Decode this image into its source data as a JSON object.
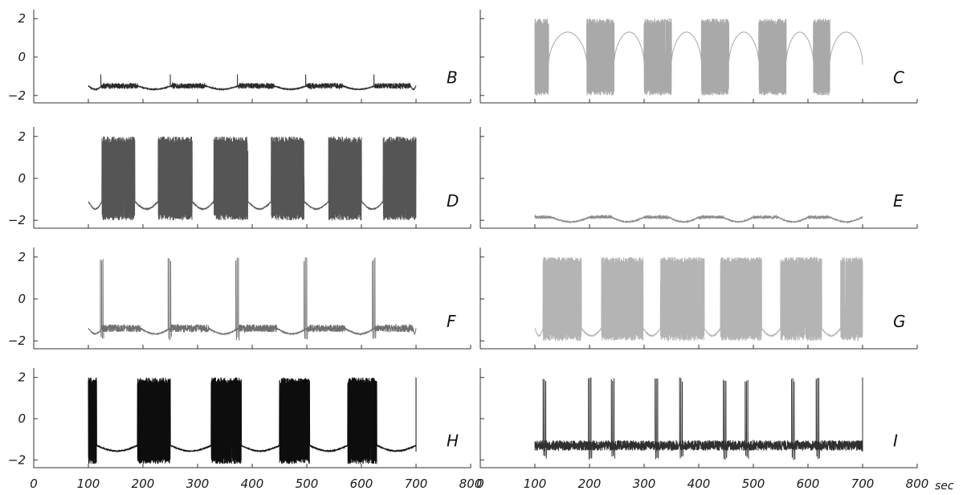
{
  "chart_data": {
    "type": "line",
    "layout": "4x2 grid of time-series panels sharing the x axis",
    "x_unit": "sec",
    "xlim": [
      0,
      800
    ],
    "x_ticks": [
      "0",
      "100",
      "200",
      "300",
      "400",
      "500",
      "600",
      "700",
      "800"
    ],
    "ylim": [
      -2.3,
      2.3
    ],
    "y_ticks": [
      "2",
      "0",
      "−2"
    ],
    "grid": false,
    "legend": "none",
    "panels": [
      {
        "label": "B",
        "color": "#2a2a2a",
        "signal_start": 100,
        "signal_end": 700,
        "pattern": "low-amplitude oscillation with small transient peaks",
        "baseline_level": -1.4,
        "active_level": -1.5,
        "active_amplitude": 0.15,
        "peak_value": -0.9,
        "active_intervals": [
          [
            125,
            190
          ],
          [
            252,
            315
          ],
          [
            375,
            440
          ],
          [
            500,
            565
          ],
          [
            625,
            690
          ]
        ],
        "quiet_minimum": -1.7
      },
      {
        "label": "C",
        "color": "#a9a9a9",
        "signal_start": 100,
        "signal_end": 700,
        "pattern": "full-amplitude bursts separated by arcs",
        "baseline_level": 1.3,
        "burst_range": [
          -2,
          2
        ],
        "active_intervals": [
          [
            100,
            125
          ],
          [
            195,
            245
          ],
          [
            300,
            350
          ],
          [
            405,
            455
          ],
          [
            510,
            560
          ],
          [
            610,
            640
          ]
        ],
        "arc_top": 1.3,
        "arc_bottom": -0.4
      },
      {
        "label": "D",
        "color": "#555555",
        "signal_start": 100,
        "signal_end": 700,
        "pattern": "full-amplitude bursts with central arcs",
        "baseline_level": -1.1,
        "burst_range": [
          -2,
          2
        ],
        "active_intervals": [
          [
            125,
            185
          ],
          [
            228,
            290
          ],
          [
            330,
            392
          ],
          [
            435,
            495
          ],
          [
            540,
            600
          ],
          [
            640,
            700
          ]
        ],
        "quiet_minimum": -1.5
      },
      {
        "label": "E",
        "color": "#8c8c8c",
        "signal_start": 100,
        "signal_end": 700,
        "pattern": "near-silent low-level oscillation",
        "baseline_level": -1.95,
        "active_level": -1.85,
        "active_amplitude": 0.08,
        "active_intervals": [
          [
            100,
            130
          ],
          [
            200,
            240
          ],
          [
            300,
            345
          ],
          [
            400,
            445
          ],
          [
            500,
            545
          ],
          [
            600,
            640
          ]
        ],
        "quiet_minimum": -2.1
      },
      {
        "label": "F",
        "color": "#707070",
        "signal_start": 100,
        "signal_end": 700,
        "pattern": "brief spikes above small oscillation",
        "baseline_level": -1.3,
        "active_level": -1.4,
        "active_amplitude": 0.18,
        "spike_times": [
          122,
          246,
          370,
          495,
          620
        ],
        "spike_range": [
          -2,
          2
        ],
        "active_intervals": [
          [
            125,
            195
          ],
          [
            250,
            320
          ],
          [
            375,
            445
          ],
          [
            500,
            570
          ],
          [
            625,
            695
          ]
        ],
        "quiet_minimum": -1.7
      },
      {
        "label": "G",
        "color": "#b4b4b4",
        "signal_start": 100,
        "signal_end": 700,
        "pattern": "wide full-amplitude bursts separated by arcs",
        "baseline_level": -1.4,
        "burst_range": [
          -2,
          2
        ],
        "active_intervals": [
          [
            115,
            185
          ],
          [
            222,
            298
          ],
          [
            330,
            410
          ],
          [
            440,
            515
          ],
          [
            550,
            625
          ],
          [
            660,
            700
          ]
        ],
        "quiet_minimum": -1.8
      },
      {
        "label": "H",
        "color": "#0d0d0d",
        "signal_start": 100,
        "signal_end": 700,
        "pattern": "full-amplitude bursts over low oscillation",
        "baseline_level": -1.3,
        "active_level": -1.3,
        "active_amplitude": 0.25,
        "burst_range": [
          -2.2,
          2
        ],
        "active_intervals": [
          [
            100,
            115
          ],
          [
            190,
            250
          ],
          [
            325,
            380
          ],
          [
            450,
            505
          ],
          [
            575,
            628
          ]
        ],
        "end_spike": 700
      },
      {
        "label": "I",
        "color": "#2f2f2f",
        "signal_start": 100,
        "signal_end": 700,
        "pattern": "sparse sharp spikes over small oscillation",
        "baseline_level": -1.3,
        "active_level": -1.3,
        "active_amplitude": 0.25,
        "spike_times": [
          115,
          198,
          240,
          320,
          365,
          445,
          485,
          570,
          615
        ],
        "spike_range": [
          -2,
          2
        ],
        "active_intervals": [],
        "end_spike": 700
      }
    ]
  }
}
